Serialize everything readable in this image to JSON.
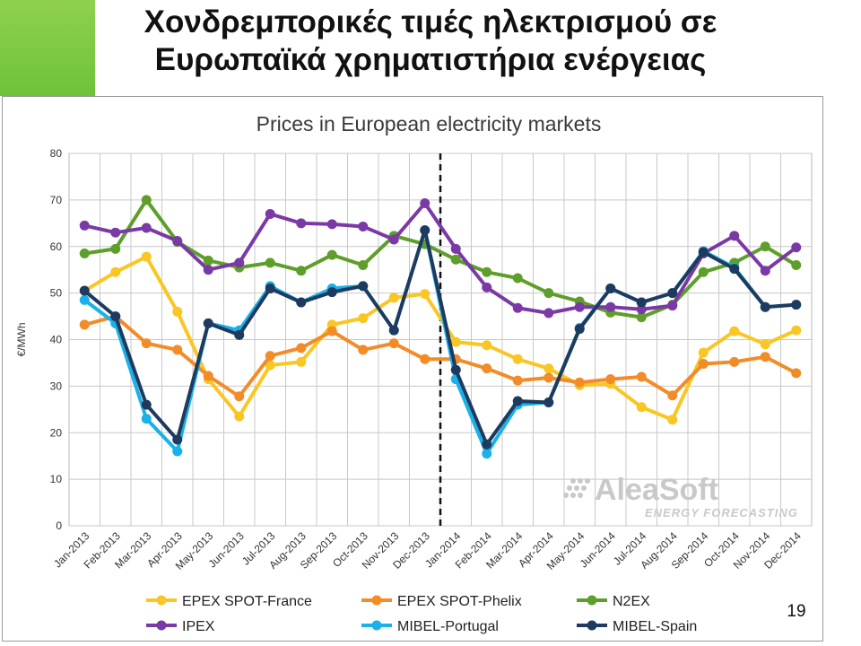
{
  "slide": {
    "title_line1": "Χονδρεμπορικές τιμές ηλεκτρισμού σε",
    "title_line2": "Ευρωπαϊκά χρηματιστήρια ενέργειας",
    "page_number": "19",
    "accent_color": "#7cc544"
  },
  "watermark": {
    "name": "AleaSoft",
    "tagline": "ENERGY FORECASTING",
    "color": "#c9c9c9"
  },
  "chart_data": {
    "type": "line",
    "title": "Prices in European electricity markets",
    "xlabel": "",
    "ylabel": "€/MWh",
    "ylim": [
      0,
      80
    ],
    "yticks": [
      0,
      10,
      20,
      30,
      40,
      50,
      60,
      70,
      80
    ],
    "grid": true,
    "legend_position": "bottom",
    "divider_after": "Dec-2013",
    "categories": [
      "Jan-2013",
      "Feb-2013",
      "Mar-2013",
      "Apr-2013",
      "May-2013",
      "Jun-2013",
      "Jul-2013",
      "Aug-2013",
      "Sep-2013",
      "Oct-2013",
      "Nov-2013",
      "Dec-2013",
      "Jan-2014",
      "Feb-2014",
      "Mar-2014",
      "Apr-2014",
      "May-2014",
      "Jun-2014",
      "Jul-2014",
      "Aug-2014",
      "Sep-2014",
      "Oct-2014",
      "Nov-2014",
      "Dec-2014"
    ],
    "series": [
      {
        "name": "EPEX SPOT-France",
        "color": "#f9c623",
        "values": [
          50.5,
          54.5,
          57.8,
          46,
          31.5,
          23.5,
          34.5,
          35.2,
          43.2,
          44.6,
          49,
          49.8,
          39.5,
          38.8,
          35.8,
          33.8,
          30.2,
          30.5,
          25.5,
          22.8,
          37.2,
          41.8,
          39,
          42
        ]
      },
      {
        "name": "EPEX SPOT-Phelix",
        "color": "#f28c28",
        "values": [
          43.2,
          45,
          39.2,
          37.8,
          32.2,
          27.8,
          36.5,
          38.2,
          41.8,
          37.8,
          39.2,
          35.8,
          35.8,
          33.8,
          31.2,
          31.8,
          30.8,
          31.5,
          32,
          28,
          34.8,
          35.2,
          36.3,
          32.8
        ]
      },
      {
        "name": "N2EX",
        "color": "#5e9e2a",
        "values": [
          58.5,
          59.5,
          70,
          61,
          57,
          55.5,
          56.5,
          54.8,
          58.2,
          56,
          62.3,
          60.5,
          57.2,
          54.5,
          53.2,
          50,
          48.2,
          45.8,
          44.8,
          47.5,
          54.5,
          56.5,
          60,
          56
        ]
      },
      {
        "name": "IPEX",
        "color": "#7a3aa5",
        "values": [
          64.5,
          63,
          64,
          61.2,
          55,
          56.5,
          67,
          65,
          64.8,
          64.3,
          61.5,
          69.3,
          59.5,
          51.2,
          46.8,
          45.7,
          47,
          47,
          46.5,
          47.3,
          58.5,
          62.3,
          54.8,
          59.8
        ]
      },
      {
        "name": "MIBEL-Portugal",
        "color": "#1ab1e8",
        "values": [
          48.5,
          43.5,
          23,
          16,
          43.5,
          42,
          51.5,
          48,
          51,
          51.5,
          42,
          63.5,
          31.5,
          15.5,
          26,
          26.5,
          42.5,
          51,
          48,
          50,
          59,
          55.5,
          47,
          47.5
        ]
      },
      {
        "name": "MIBEL-Spain",
        "color": "#1e3a5f",
        "values": [
          50.5,
          45,
          26,
          18.5,
          43.5,
          41,
          51,
          48,
          50.2,
          51.5,
          42,
          63.5,
          33.5,
          17.5,
          26.8,
          26.5,
          42.3,
          51,
          48,
          50,
          58.8,
          55.2,
          47,
          47.5
        ]
      }
    ]
  }
}
